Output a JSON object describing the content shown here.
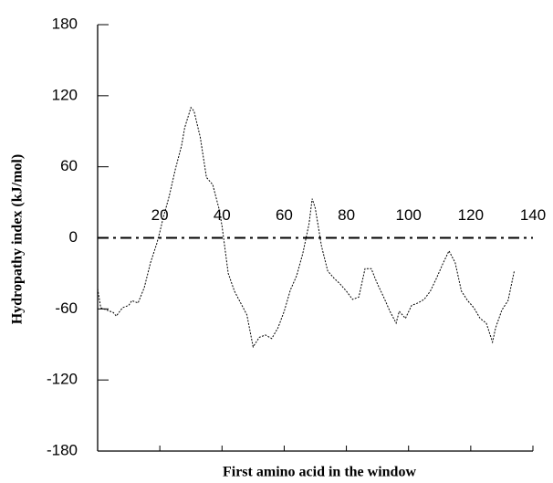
{
  "chart_data": {
    "type": "line",
    "xlabel": "First amino acid in the window",
    "ylabel": "Hydropathy index (kJ/mol)",
    "x": [
      0,
      1,
      3,
      5,
      6,
      8,
      10,
      11,
      13,
      15,
      17,
      19,
      20,
      21,
      23,
      25,
      27,
      28,
      30,
      31,
      33,
      35,
      37,
      39,
      40,
      42,
      44,
      46,
      48,
      50,
      52,
      54,
      56,
      58,
      60,
      62,
      64,
      66,
      68,
      69,
      70,
      72,
      74,
      76,
      78,
      80,
      82,
      84,
      86,
      88,
      90,
      92,
      94,
      96,
      97,
      99,
      101,
      103,
      105,
      107,
      109,
      111,
      113,
      115,
      117,
      119,
      121,
      123,
      125,
      127,
      128,
      130,
      132,
      134
    ],
    "series": [
      {
        "color": "#000000",
        "values": [
          -43,
          -59,
          -61,
          -63,
          -66,
          -59,
          -57,
          -53,
          -55,
          -42,
          -21,
          -5,
          5,
          16,
          35,
          58,
          78,
          93,
          110,
          107,
          85,
          51,
          45,
          25,
          10,
          -30,
          -45,
          -55,
          -65,
          -92,
          -84,
          -82,
          -85,
          -76,
          -62,
          -44,
          -32,
          -13,
          12,
          33,
          25,
          -7,
          -28,
          -34,
          -39,
          -45,
          -52,
          -50,
          -26,
          -26,
          -39,
          -50,
          -62,
          -72,
          -62,
          -68,
          -57,
          -55,
          -52,
          -45,
          -34,
          -22,
          -11,
          -21,
          -45,
          -53,
          -59,
          -68,
          -72,
          -88,
          -76,
          -61,
          -53,
          -28
        ]
      }
    ],
    "xlim": [
      0,
      140
    ],
    "xticks": [
      20,
      40,
      60,
      80,
      100,
      120,
      140
    ],
    "ylim": [
      -180,
      180
    ],
    "yticks": [
      -180,
      -120,
      -60,
      0,
      60,
      120,
      180
    ],
    "grid": false
  }
}
